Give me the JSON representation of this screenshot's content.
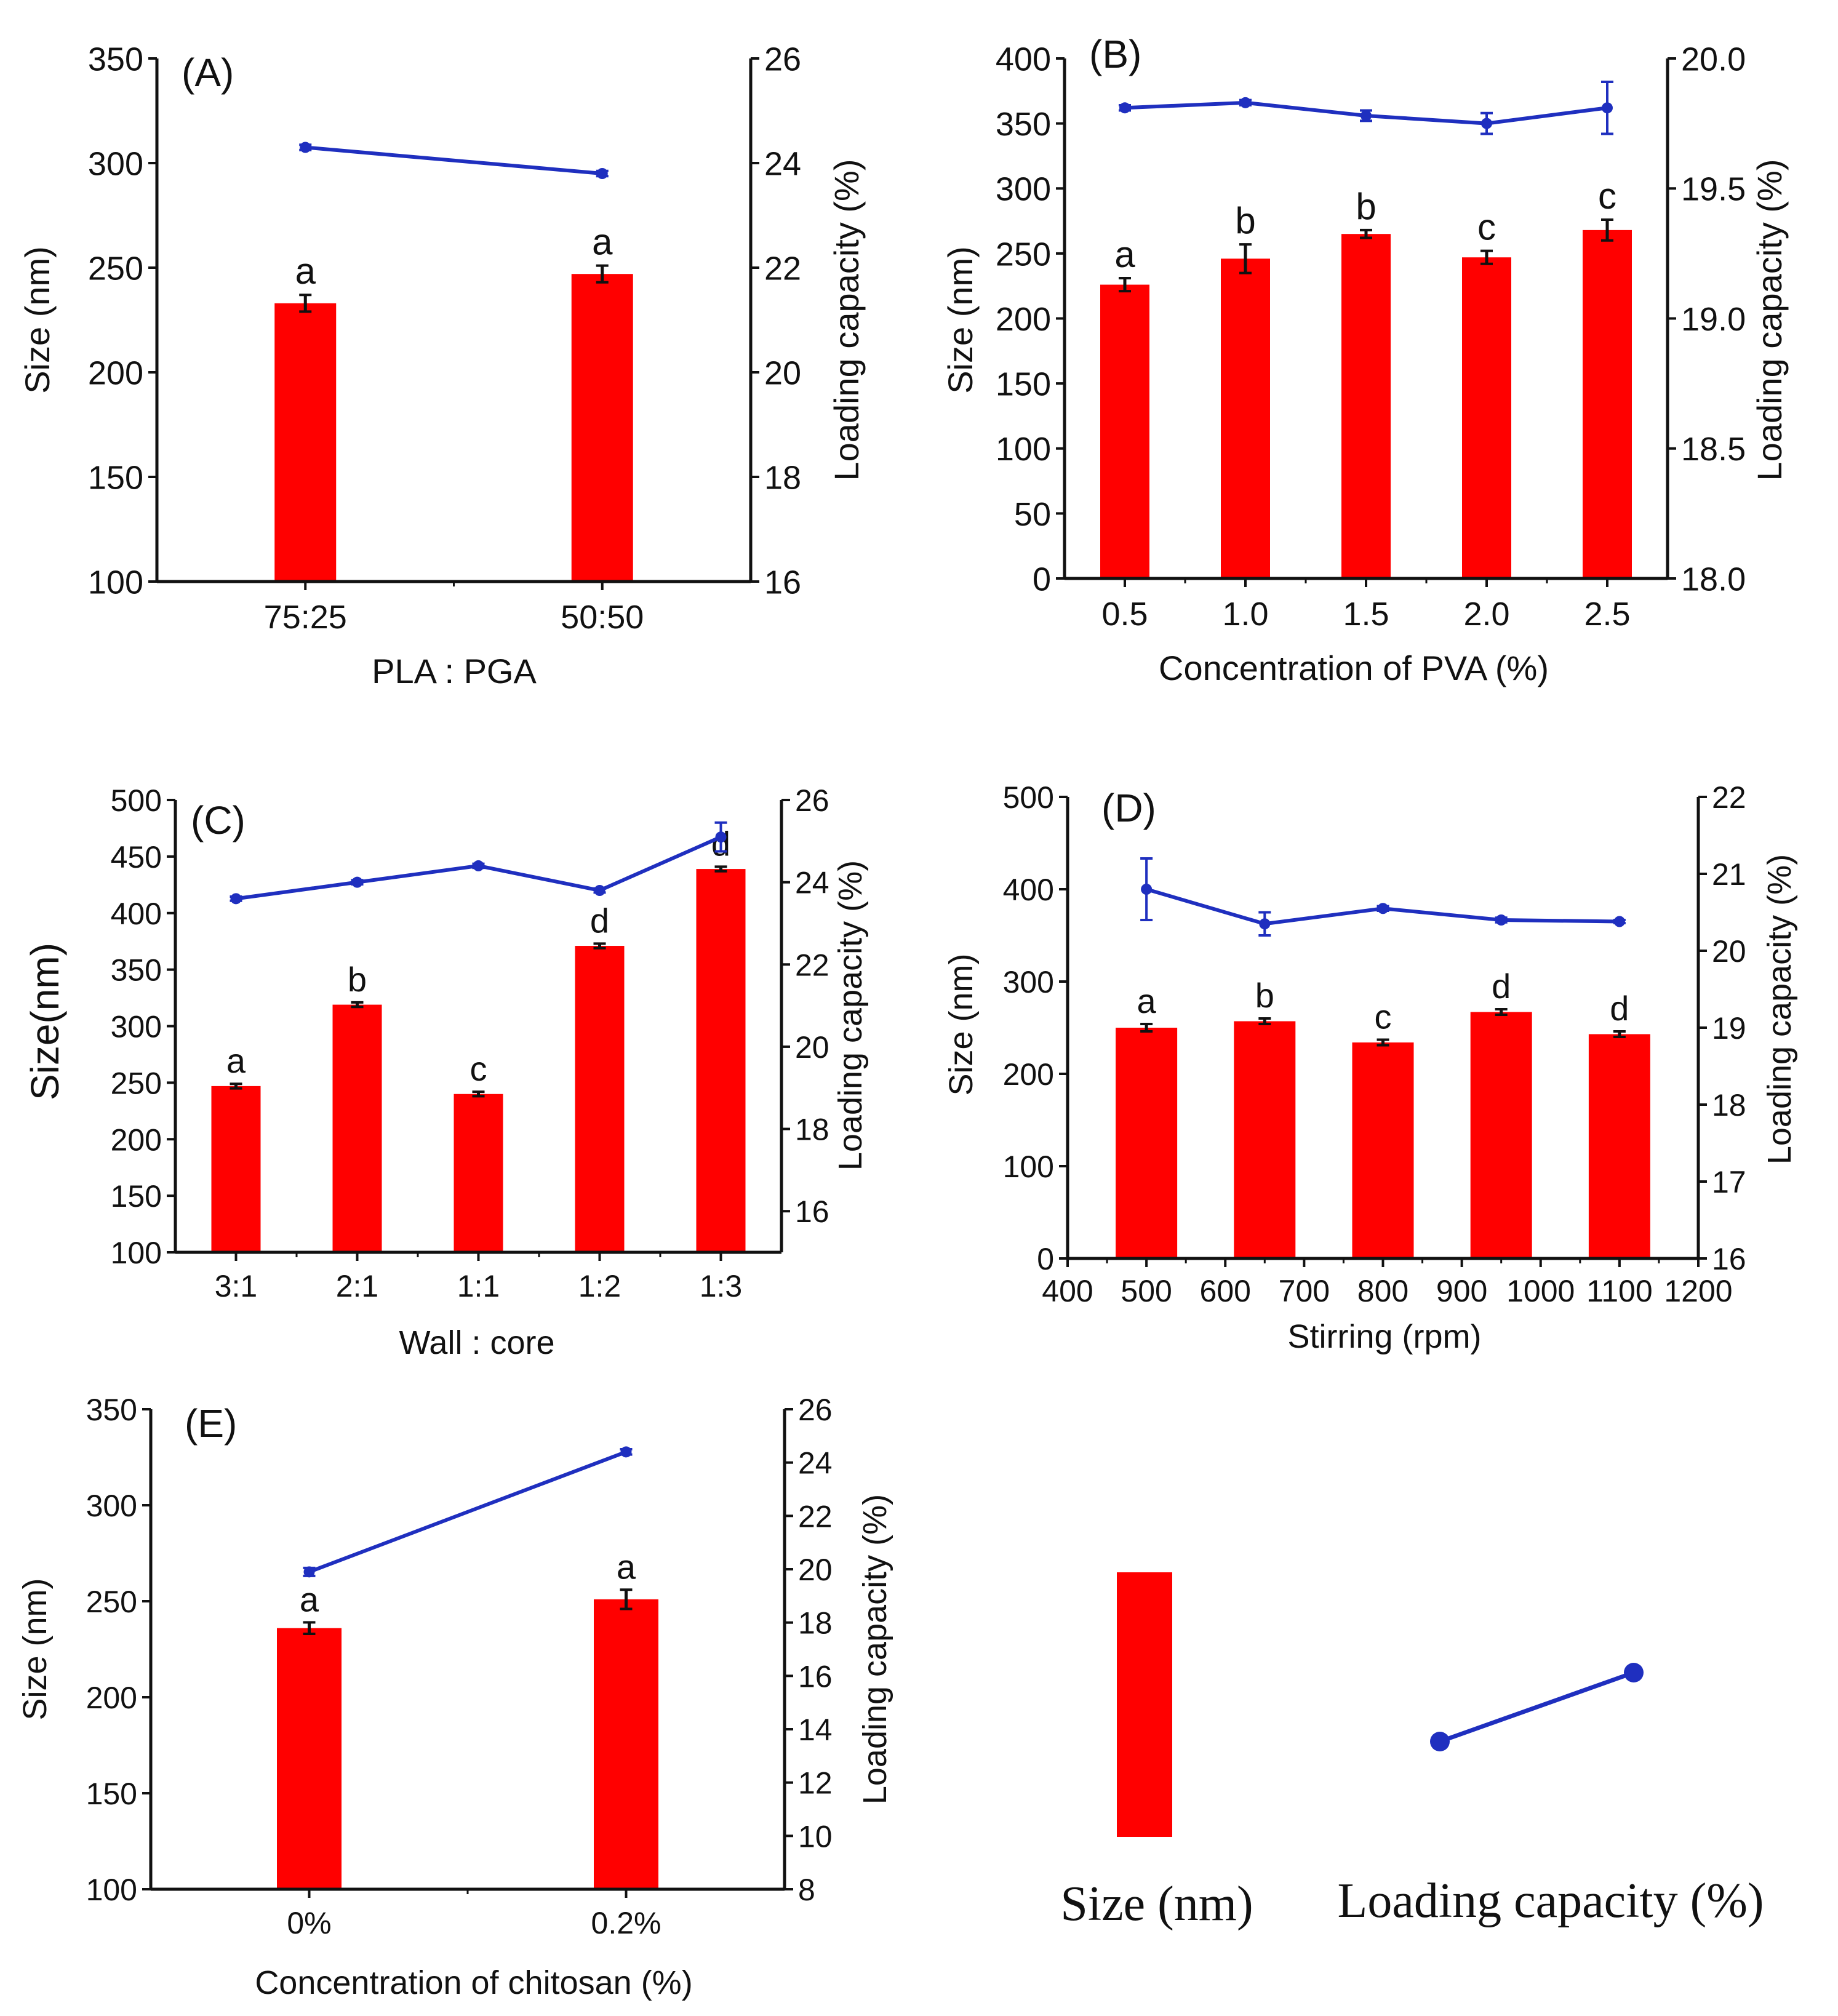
{
  "figure": {
    "bar_color": "#ff0000",
    "line_color": "#1f2fbf",
    "axis_color": "#111111"
  },
  "legend": {
    "size_label": "Size (nm)",
    "loading_label": "Loading capacity (%)"
  },
  "chart_data": [
    {
      "id": "A",
      "panel_label": "(A)",
      "type": "bar+line",
      "xlabel": "PLA : PGA",
      "ylabel_left": "Size (nm)",
      "ylabel_right": "Loading capacity (%)",
      "x_axis": "categorical",
      "categories": [
        "75:25",
        "50:50"
      ],
      "size_values": [
        233,
        247
      ],
      "size_errors": [
        4,
        4
      ],
      "significance": [
        "a",
        "a"
      ],
      "loading_values": [
        24.3,
        23.8
      ],
      "loading_errors": [
        0.05,
        0.05
      ],
      "ylim_left": [
        100,
        350
      ],
      "yticks_left": [
        100,
        150,
        200,
        250,
        300,
        350
      ],
      "ylim_right": [
        16,
        26
      ],
      "yticks_right": [
        16,
        18,
        20,
        22,
        24,
        26
      ],
      "yticks_right_labels": [
        "16",
        "18",
        "20",
        "22",
        "24",
        "26"
      ]
    },
    {
      "id": "B",
      "panel_label": "(B)",
      "type": "bar+line",
      "xlabel": "Concentration of PVA (%)",
      "ylabel_left": "Size (nm)",
      "ylabel_right": "Loading capacity (%)",
      "x_axis": "categorical",
      "categories": [
        "0.5",
        "1.0",
        "1.5",
        "2.0",
        "2.5"
      ],
      "size_values": [
        226,
        246,
        265,
        247,
        268
      ],
      "size_errors": [
        5,
        11,
        3,
        5,
        8
      ],
      "significance": [
        "a",
        "b",
        "b",
        "c",
        "c"
      ],
      "loading_values": [
        19.81,
        19.83,
        19.78,
        19.75,
        19.81
      ],
      "loading_errors": [
        0.01,
        0.01,
        0.02,
        0.04,
        0.1
      ],
      "ylim_left": [
        0,
        400
      ],
      "yticks_left": [
        0,
        50,
        100,
        150,
        200,
        250,
        300,
        350,
        400
      ],
      "ylim_right": [
        18.0,
        20.0
      ],
      "yticks_right": [
        18.0,
        18.5,
        19.0,
        19.5,
        20.0
      ],
      "yticks_right_labels": [
        "18.0",
        "18.5",
        "19.0",
        "19.5",
        "20.0"
      ]
    },
    {
      "id": "C",
      "panel_label": "(C)",
      "type": "bar+line",
      "xlabel": "Wall : core",
      "ylabel_left": "Size(nm)",
      "ylabel_right": "Loading capacity (%)",
      "x_axis": "categorical",
      "categories": [
        "3:1",
        "2:1",
        "1:1",
        "1:2",
        "1:3"
      ],
      "size_values": [
        247,
        319,
        240,
        371,
        439
      ],
      "size_errors": [
        2,
        2,
        2,
        2,
        2
      ],
      "significance": [
        "a",
        "b",
        "c",
        "d",
        "d"
      ],
      "loading_values": [
        23.6,
        24.0,
        24.4,
        23.8,
        25.1
      ],
      "loading_errors": [
        0.05,
        0.05,
        0.05,
        0.05,
        0.35
      ],
      "ylim_left": [
        100,
        500
      ],
      "yticks_left": [
        100,
        150,
        200,
        250,
        300,
        350,
        400,
        450,
        500
      ],
      "ylim_right": [
        15,
        26
      ],
      "yticks_right": [
        16,
        18,
        20,
        22,
        24,
        26
      ],
      "yticks_right_labels": [
        "16",
        "18",
        "20",
        "22",
        "24",
        "26"
      ]
    },
    {
      "id": "D",
      "panel_label": "(D)",
      "type": "bar+line",
      "xlabel": "Stirring (rpm)",
      "ylabel_left": "Size (nm)",
      "ylabel_right": "Loading capacity (%)",
      "x_axis": "numeric",
      "xlim": [
        400,
        1200
      ],
      "xticks": [
        400,
        500,
        600,
        700,
        800,
        900,
        1000,
        1100,
        1200
      ],
      "xtick_labels": [
        "400",
        "500",
        "600",
        "700",
        "800",
        "900",
        "1000",
        "1100",
        "1200"
      ],
      "x": [
        500,
        650,
        800,
        950,
        1100
      ],
      "size_values": [
        250,
        257,
        234,
        267,
        243
      ],
      "size_errors": [
        4,
        3,
        3,
        3,
        3
      ],
      "significance": [
        "a",
        "b",
        "c",
        "d",
        "d"
      ],
      "loading_values": [
        20.8,
        20.35,
        20.55,
        20.4,
        20.38
      ],
      "loading_errors": [
        0.4,
        0.15,
        0.03,
        0.03,
        0.02
      ],
      "ylim_left": [
        0,
        500
      ],
      "yticks_left": [
        0,
        100,
        200,
        300,
        400,
        500
      ],
      "ylim_right": [
        16,
        22
      ],
      "yticks_right": [
        16,
        17,
        18,
        19,
        20,
        21,
        22
      ],
      "yticks_right_labels": [
        "16",
        "17",
        "18",
        "19",
        "20",
        "21",
        "22"
      ]
    },
    {
      "id": "E",
      "panel_label": "(E)",
      "type": "bar+line",
      "xlabel": "Concentration of chitosan (%)",
      "ylabel_left": "Size (nm)",
      "ylabel_right": "Loading capacity (%)",
      "x_axis": "categorical",
      "categories": [
        "0%",
        "0.2%"
      ],
      "size_values": [
        236,
        251
      ],
      "size_errors": [
        3,
        5
      ],
      "significance": [
        "a",
        "a"
      ],
      "loading_values": [
        19.9,
        24.4
      ],
      "loading_errors": [
        0.15,
        0.1
      ],
      "ylim_left": [
        100,
        350
      ],
      "yticks_left": [
        100,
        150,
        200,
        250,
        300,
        350
      ],
      "ylim_right": [
        8,
        26
      ],
      "yticks_right": [
        8,
        10,
        12,
        14,
        16,
        18,
        20,
        22,
        24,
        26
      ],
      "yticks_right_labels": [
        "8",
        "10",
        "12",
        "14",
        "16",
        "18",
        "20",
        "22",
        "24",
        "26"
      ]
    }
  ]
}
